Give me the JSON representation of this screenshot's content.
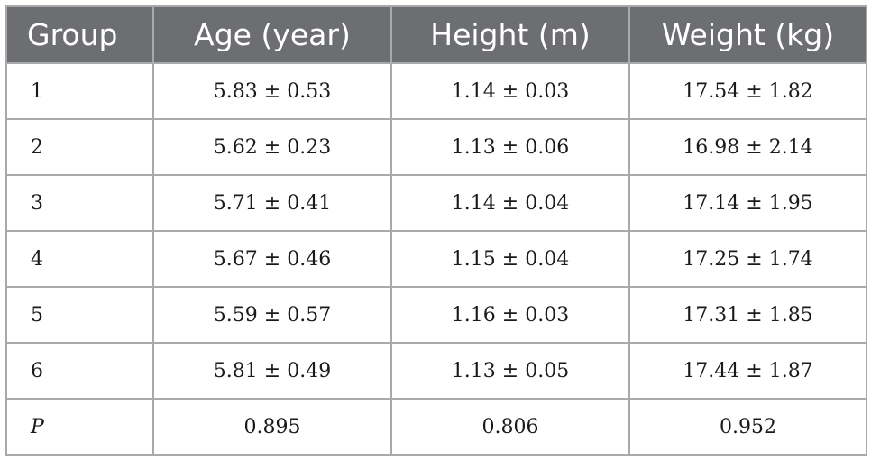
{
  "table": {
    "headers": [
      "Group",
      "Age (year)",
      "Height (m)",
      "Weight (kg)"
    ],
    "rows": [
      [
        "1",
        "5.83 ± 0.53",
        "1.14 ± 0.03",
        "17.54 ± 1.82"
      ],
      [
        "2",
        "5.62 ± 0.23",
        "1.13 ± 0.06",
        "16.98 ± 2.14"
      ],
      [
        "3",
        "5.71 ± 0.41",
        "1.14 ± 0.04",
        "17.14 ± 1.95"
      ],
      [
        "4",
        "5.67 ± 0.46",
        "1.15 ± 0.04",
        "17.25 ± 1.74"
      ],
      [
        "5",
        "5.59 ± 0.57",
        "1.16 ± 0.03",
        "17.31 ± 1.85"
      ],
      [
        "6",
        "5.81 ± 0.49",
        "1.13 ± 0.05",
        "17.44 ± 1.87"
      ],
      [
        "P",
        "0.895",
        "0.806",
        "0.952"
      ]
    ],
    "colors": {
      "header_bg": "#6d6e71",
      "header_text": "#ffffff",
      "border": "#a7a9ac"
    }
  }
}
